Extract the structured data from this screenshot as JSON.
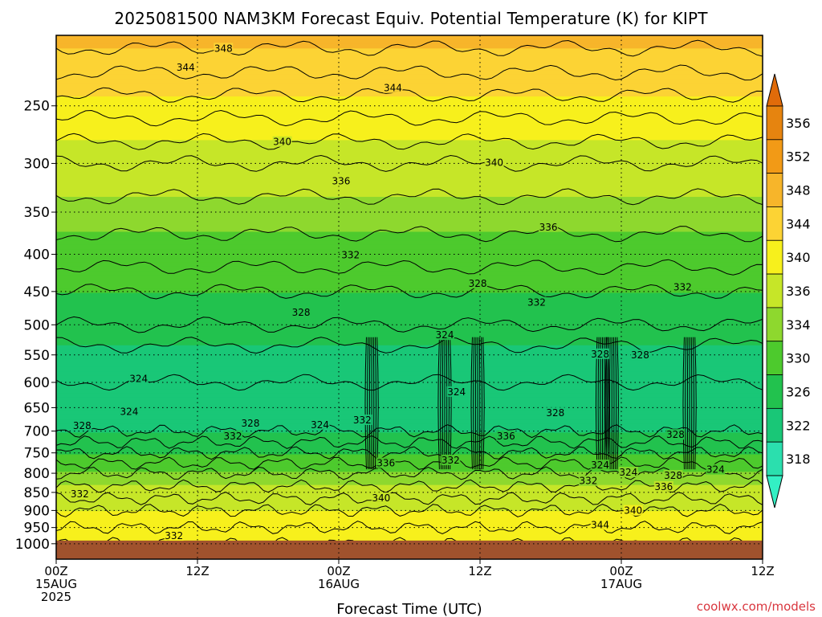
{
  "chart_data": {
    "type": "heatmap",
    "title": "2025081500 NAM3KM Forecast Equiv. Potential Temperature (K) for KIPT",
    "xlabel": "Forecast Time (UTC)",
    "ylabel": "",
    "credit": "coolwx.com/models",
    "y_scale": "log-pressure",
    "y_inverted": true,
    "ylim": [
      200,
      1050
    ],
    "pressure_ticks": [
      250,
      300,
      350,
      400,
      450,
      500,
      550,
      600,
      650,
      700,
      750,
      800,
      850,
      900,
      950,
      1000
    ],
    "x_ticks": [
      {
        "hour": 0,
        "lines": [
          "00Z",
          "15AUG",
          "2025"
        ]
      },
      {
        "hour": 12,
        "lines": [
          "12Z"
        ]
      },
      {
        "hour": 24,
        "lines": [
          "00Z",
          "16AUG"
        ]
      },
      {
        "hour": 36,
        "lines": [
          "12Z"
        ]
      },
      {
        "hour": 48,
        "lines": [
          "00Z",
          "17AUG"
        ]
      },
      {
        "hour": 60,
        "lines": [
          "12Z"
        ]
      }
    ],
    "xlim": [
      0,
      60
    ],
    "grid": true,
    "colorbar": {
      "ticks": [
        356,
        352,
        348,
        344,
        340,
        336,
        334,
        330,
        326,
        322,
        318
      ],
      "colors": [
        "#e6840f",
        "#f29a16",
        "#f7b52a",
        "#fcd334",
        "#f7f01c",
        "#c6e628",
        "#8ed82e",
        "#4dca2d",
        "#22c24e",
        "#19c777",
        "#2bdfae"
      ],
      "extend": "both"
    },
    "theta_e_profile": [
      {
        "p": 200,
        "theta_e": 349
      },
      {
        "p": 250,
        "theta_e": 343
      },
      {
        "p": 300,
        "theta_e": 338
      },
      {
        "p": 350,
        "theta_e": 335
      },
      {
        "p": 400,
        "theta_e": 333
      },
      {
        "p": 450,
        "theta_e": 330
      },
      {
        "p": 500,
        "theta_e": 328
      },
      {
        "p": 550,
        "theta_e": 325
      },
      {
        "p": 600,
        "theta_e": 324
      },
      {
        "p": 650,
        "theta_e": 324
      },
      {
        "p": 700,
        "theta_e": 326
      },
      {
        "p": 750,
        "theta_e": 330
      },
      {
        "p": 800,
        "theta_e": 334
      },
      {
        "p": 850,
        "theta_e": 337
      },
      {
        "p": 900,
        "theta_e": 340
      },
      {
        "p": 950,
        "theta_e": 342
      },
      {
        "p": 1000,
        "theta_e": 344
      }
    ],
    "contour_labels": [
      {
        "text": "348",
        "hour": 14.2,
        "p": 209
      },
      {
        "text": "344",
        "hour": 11.0,
        "p": 222
      },
      {
        "text": "344",
        "hour": 28.6,
        "p": 237
      },
      {
        "text": "340",
        "hour": 19.2,
        "p": 281
      },
      {
        "text": "340",
        "hour": 37.2,
        "p": 300
      },
      {
        "text": "336",
        "hour": 24.2,
        "p": 318
      },
      {
        "text": "336",
        "hour": 41.8,
        "p": 368
      },
      {
        "text": "332",
        "hour": 25.0,
        "p": 402
      },
      {
        "text": "332",
        "hour": 40.8,
        "p": 467
      },
      {
        "text": "332",
        "hour": 53.2,
        "p": 445
      },
      {
        "text": "328",
        "hour": 20.8,
        "p": 482
      },
      {
        "text": "328",
        "hour": 35.8,
        "p": 440
      },
      {
        "text": "328",
        "hour": 46.2,
        "p": 550
      },
      {
        "text": "328",
        "hour": 49.6,
        "p": 552
      },
      {
        "text": "328",
        "hour": 42.4,
        "p": 663
      },
      {
        "text": "328",
        "hour": 2.2,
        "p": 690
      },
      {
        "text": "328",
        "hour": 16.5,
        "p": 685
      },
      {
        "text": "328",
        "hour": 52.6,
        "p": 710
      },
      {
        "text": "328",
        "hour": 52.4,
        "p": 808
      },
      {
        "text": "324",
        "hour": 7.0,
        "p": 595
      },
      {
        "text": "324",
        "hour": 6.2,
        "p": 660
      },
      {
        "text": "324",
        "hour": 33.0,
        "p": 518
      },
      {
        "text": "324",
        "hour": 34.0,
        "p": 620
      },
      {
        "text": "324",
        "hour": 22.4,
        "p": 688
      },
      {
        "text": "324",
        "hour": 46.2,
        "p": 782
      },
      {
        "text": "324",
        "hour": 48.6,
        "p": 800
      },
      {
        "text": "324",
        "hour": 56.0,
        "p": 793
      },
      {
        "text": "332",
        "hour": 15.0,
        "p": 713
      },
      {
        "text": "332",
        "hour": 26.0,
        "p": 678
      },
      {
        "text": "332",
        "hour": 33.5,
        "p": 770
      },
      {
        "text": "332",
        "hour": 45.2,
        "p": 822
      },
      {
        "text": "332",
        "hour": 2.0,
        "p": 857
      },
      {
        "text": "332",
        "hour": 10.0,
        "p": 978
      },
      {
        "text": "336",
        "hour": 28.0,
        "p": 777
      },
      {
        "text": "336",
        "hour": 38.2,
        "p": 713
      },
      {
        "text": "336",
        "hour": 51.6,
        "p": 837
      },
      {
        "text": "340",
        "hour": 27.6,
        "p": 868
      },
      {
        "text": "340",
        "hour": 49.0,
        "p": 903
      },
      {
        "text": "344",
        "hour": 46.2,
        "p": 945
      }
    ],
    "convective_columns_hours": [
      26.8,
      33.0,
      35.8,
      46.4,
      47.2,
      53.8
    ],
    "surface_band_color": "#a0522d"
  }
}
